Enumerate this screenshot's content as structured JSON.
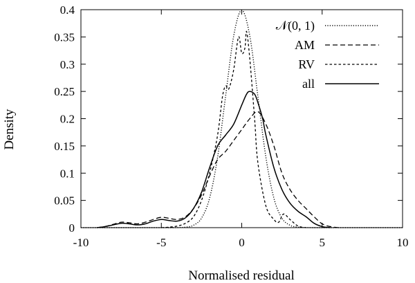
{
  "chart_data": {
    "type": "line",
    "title": "",
    "xlabel": "Normalised residual",
    "ylabel": "Density",
    "xlim": [
      -10,
      10
    ],
    "ylim": [
      0,
      0.4
    ],
    "xticks": [
      -10,
      -5,
      0,
      5,
      10
    ],
    "xtick_labels": [
      "-10",
      "-5",
      "0",
      "5",
      "10"
    ],
    "yticks": [
      0,
      0.05,
      0.1,
      0.15,
      0.2,
      0.25,
      0.3,
      0.35,
      0.4
    ],
    "ytick_labels": [
      "0",
      "0.05",
      "0.1",
      "0.15",
      "0.2",
      "0.25",
      "0.3",
      "0.35",
      "0.4"
    ],
    "grid": false,
    "legend_position": "top-right",
    "series": [
      {
        "name": "𝒩(0, 1)",
        "style": "dotted",
        "x": [
          -10,
          -5,
          -4,
          -3.5,
          -3,
          -2.5,
          -2,
          -1.5,
          -1,
          -0.5,
          0,
          0.5,
          1,
          1.5,
          2,
          2.5,
          3,
          3.5,
          4,
          5,
          10
        ],
        "y": [
          0,
          1.5e-06,
          0.0001,
          0.0009,
          0.0044,
          0.0175,
          0.054,
          0.1295,
          0.242,
          0.352,
          0.399,
          0.352,
          0.242,
          0.1295,
          0.054,
          0.0175,
          0.0044,
          0.0009,
          0.0001,
          1.5e-06,
          0
        ]
      },
      {
        "name": "AM",
        "style": "dashed",
        "x": [
          -9,
          -8.5,
          -8,
          -7.5,
          -7,
          -6.5,
          -6,
          -5.5,
          -5,
          -4.5,
          -4,
          -3.5,
          -3,
          -2.5,
          -2,
          -1.5,
          -1,
          -0.5,
          0,
          0.5,
          1,
          1.5,
          2,
          2.5,
          3,
          3.5,
          4,
          4.5,
          5,
          5.5,
          6
        ],
        "y": [
          0,
          0.002,
          0.006,
          0.01,
          0.009,
          0.007,
          0.01,
          0.015,
          0.019,
          0.017,
          0.015,
          0.02,
          0.035,
          0.06,
          0.095,
          0.125,
          0.14,
          0.16,
          0.18,
          0.2,
          0.213,
          0.19,
          0.15,
          0.1,
          0.07,
          0.05,
          0.035,
          0.02,
          0.007,
          0.002,
          0
        ]
      },
      {
        "name": "RV",
        "style": "short-dashed",
        "x": [
          -5,
          -4.5,
          -4,
          -3.5,
          -3,
          -2.5,
          -2,
          -1.5,
          -1.2,
          -1,
          -0.8,
          -0.5,
          -0.2,
          0,
          0.2,
          0.3,
          0.5,
          0.8,
          1,
          1.5,
          2,
          2.3,
          2.6,
          3,
          3.5,
          4
        ],
        "y": [
          0,
          0.001,
          0.003,
          0.008,
          0.02,
          0.05,
          0.1,
          0.17,
          0.24,
          0.26,
          0.255,
          0.29,
          0.35,
          0.32,
          0.33,
          0.36,
          0.31,
          0.2,
          0.12,
          0.04,
          0.015,
          0.01,
          0.025,
          0.015,
          0.003,
          0
        ]
      },
      {
        "name": "all",
        "style": "solid",
        "x": [
          -9,
          -8.5,
          -8,
          -7.5,
          -7,
          -6.5,
          -6,
          -5.5,
          -5,
          -4.5,
          -4,
          -3.5,
          -3,
          -2.5,
          -2,
          -1.5,
          -1,
          -0.5,
          0,
          0.3,
          0.5,
          0.8,
          1,
          1.3,
          1.5,
          2,
          2.5,
          3,
          3.5,
          4,
          4.5,
          5,
          5.5
        ],
        "y": [
          0,
          0.002,
          0.005,
          0.008,
          0.007,
          0.005,
          0.007,
          0.012,
          0.015,
          0.013,
          0.012,
          0.018,
          0.035,
          0.065,
          0.11,
          0.15,
          0.17,
          0.19,
          0.225,
          0.245,
          0.25,
          0.245,
          0.23,
          0.2,
          0.17,
          0.11,
          0.07,
          0.045,
          0.03,
          0.02,
          0.008,
          0.002,
          0
        ]
      }
    ]
  }
}
